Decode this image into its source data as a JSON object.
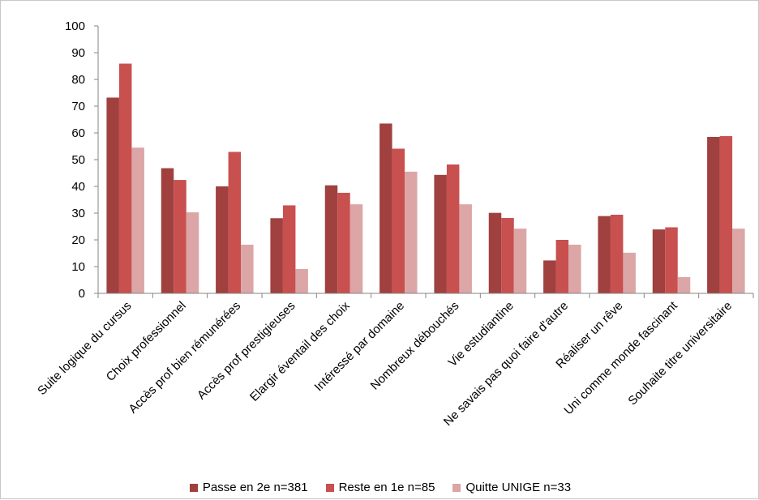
{
  "chart_data": {
    "type": "bar",
    "title": "",
    "xlabel": "",
    "ylabel": "",
    "ylim": [
      0,
      100
    ],
    "yticks": [
      0,
      10,
      20,
      30,
      40,
      50,
      60,
      70,
      80,
      90,
      100
    ],
    "grid": false,
    "legend_position": "bottom",
    "categories": [
      "Suite logique du cursus",
      "Choix professionnel",
      "Accès prof bien rémunérées",
      "Accès prof prestigieuses",
      "Elargir éventail des choix",
      "Intéressé par domaine",
      "Nombreux débouchés",
      "Vie estudiantine",
      "Ne savais pas quoi faire d'autre",
      "Réaliser un rêve",
      "Uni comme monde fascinant",
      "Souhaite titre universitaire"
    ],
    "series": [
      {
        "name": "Passe en 2e n=381",
        "color": "#a0403f",
        "values": [
          73.2,
          46.8,
          40,
          28.1,
          40.4,
          63.5,
          44.3,
          30.1,
          12.3,
          28.9,
          23.9,
          58.5
        ]
      },
      {
        "name": "Reste en 1e n=85",
        "color": "#c8504f",
        "values": [
          85.9,
          42.4,
          52.9,
          32.9,
          37.6,
          54.1,
          48.2,
          28.2,
          20,
          29.4,
          24.7,
          58.8
        ]
      },
      {
        "name": "Quitte UNIGE n=33",
        "color": "#dca6a6",
        "values": [
          54.5,
          30.3,
          18.2,
          9.1,
          33.3,
          45.5,
          33.3,
          24.2,
          18.2,
          15.2,
          6.1,
          24.2
        ]
      }
    ]
  }
}
